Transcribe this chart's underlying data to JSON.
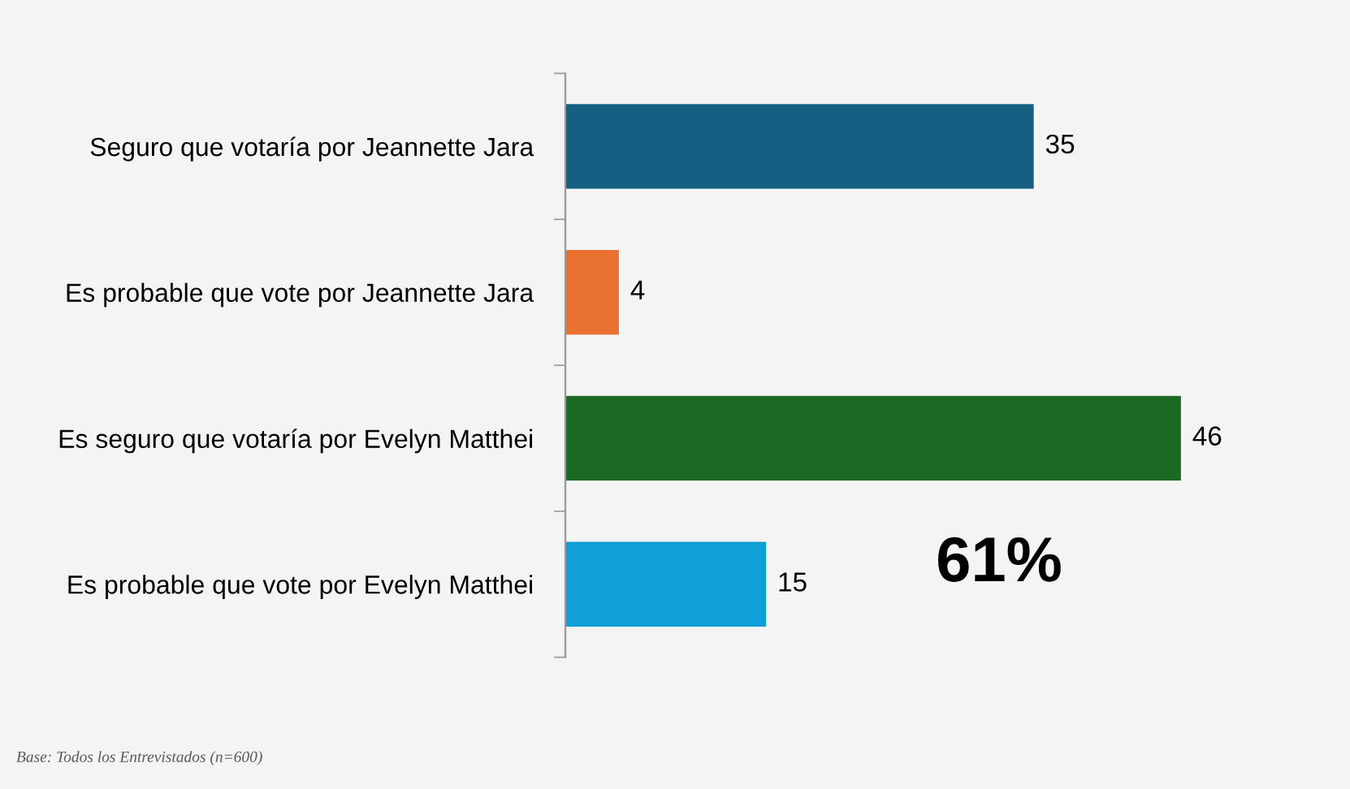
{
  "chart_data": {
    "type": "bar",
    "orientation": "horizontal",
    "categories": [
      "Seguro que votaría por Jeannette Jara",
      "Es probable que vote por Jeannette Jara",
      "Es seguro que votaría por Evelyn Matthei",
      "Es probable que vote por Evelyn Matthei"
    ],
    "values": [
      35,
      4,
      46,
      15
    ],
    "colors": [
      "#156082",
      "#e97132",
      "#196b24",
      "#0f9ed5"
    ],
    "data_labels": true,
    "grid": false,
    "legend": false,
    "annotations": [
      "61%",
      "Base: Todos los Entrevistados (n=600)"
    ]
  }
}
